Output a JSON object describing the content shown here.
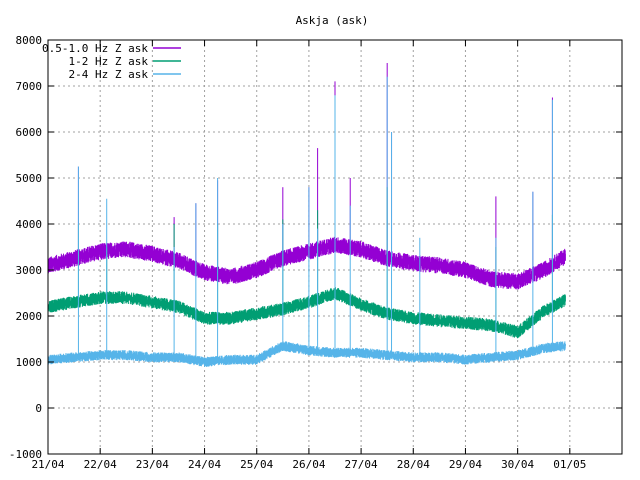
{
  "chart_data": {
    "type": "line",
    "title": "Askja (ask)",
    "xlabel": "",
    "ylabel": "",
    "ylim": [
      -1000,
      8000
    ],
    "yticks": [
      -1000,
      0,
      1000,
      2000,
      3000,
      4000,
      5000,
      6000,
      7000,
      8000
    ],
    "xlim_days": [
      0,
      11
    ],
    "xticks": [
      "21/04",
      "22/04",
      "23/04",
      "24/04",
      "25/04",
      "26/04",
      "27/04",
      "28/04",
      "29/04",
      "30/04",
      "01/05"
    ],
    "grid": true,
    "legend_position": "top-left",
    "series": [
      {
        "name": "0.5-1.0 Hz Z ask",
        "color": "#9400d3",
        "x": [
          "21/04 00:00",
          "21/04 12:00",
          "22/04 00:00",
          "22/04 12:00",
          "23/04 00:00",
          "23/04 12:00",
          "24/04 00:00",
          "24/04 12:00",
          "25/04 00:00",
          "25/04 12:00",
          "26/04 00:00",
          "26/04 12:00",
          "27/04 00:00",
          "27/04 12:00",
          "28/04 00:00",
          "28/04 12:00",
          "29/04 00:00",
          "29/04 12:00",
          "30/04 00:00",
          "30/04 12:00",
          "30/04 22:00"
        ],
        "values": [
          3100,
          3250,
          3400,
          3450,
          3350,
          3200,
          2950,
          2850,
          3000,
          3250,
          3400,
          3550,
          3450,
          3250,
          3150,
          3100,
          3000,
          2800,
          2750,
          3000,
          3300
        ],
        "spikes": [
          [
            "21/04 14:00",
            5250
          ],
          [
            "23/04 10:00",
            4150
          ],
          [
            "23/04 20:00",
            4450
          ],
          [
            "24/04 06:00",
            4950
          ],
          [
            "25/04 12:00",
            4800
          ],
          [
            "26/04 00:00",
            4800
          ],
          [
            "26/04 04:00",
            5650
          ],
          [
            "26/04 12:00",
            7100
          ],
          [
            "26/04 19:00",
            5000
          ],
          [
            "27/04 12:00",
            7500
          ],
          [
            "27/04 14:00",
            6000
          ],
          [
            "29/04 14:00",
            4600
          ],
          [
            "30/04 07:00",
            4700
          ],
          [
            "30/04 16:00",
            6750
          ]
        ]
      },
      {
        "name": "1-2 Hz Z ask",
        "color": "#009e73",
        "x": [
          "21/04 00:00",
          "21/04 12:00",
          "22/04 00:00",
          "22/04 12:00",
          "23/04 00:00",
          "23/04 12:00",
          "24/04 00:00",
          "24/04 12:00",
          "25/04 00:00",
          "25/04 12:00",
          "26/04 00:00",
          "26/04 12:00",
          "27/04 00:00",
          "27/04 12:00",
          "28/04 00:00",
          "28/04 12:00",
          "29/04 00:00",
          "29/04 12:00",
          "30/04 00:00",
          "30/04 12:00",
          "30/04 22:00"
        ],
        "values": [
          2200,
          2300,
          2400,
          2400,
          2300,
          2200,
          1950,
          1950,
          2050,
          2150,
          2300,
          2500,
          2250,
          2050,
          1950,
          1900,
          1850,
          1800,
          1650,
          2100,
          2350
        ],
        "spikes": [
          [
            "21/04 14:00",
            4000
          ],
          [
            "22/04 03:00",
            3500
          ],
          [
            "23/04 10:00",
            4000
          ],
          [
            "24/04 06:00",
            4000
          ],
          [
            "25/04 12:00",
            4100
          ],
          [
            "26/04 04:00",
            4300
          ],
          [
            "26/04 12:00",
            4000
          ],
          [
            "27/04 12:00",
            4800
          ],
          [
            "29/04 14:00",
            3500
          ],
          [
            "30/04 16:00",
            4200
          ]
        ]
      },
      {
        "name": "2-4 Hz Z ask",
        "color": "#56b4e9",
        "x": [
          "21/04 00:00",
          "21/04 12:00",
          "22/04 00:00",
          "22/04 12:00",
          "23/04 00:00",
          "23/04 12:00",
          "24/04 00:00",
          "24/04 12:00",
          "25/04 00:00",
          "25/04 12:00",
          "26/04 00:00",
          "26/04 12:00",
          "27/04 00:00",
          "27/04 12:00",
          "28/04 00:00",
          "28/04 12:00",
          "29/04 00:00",
          "29/04 12:00",
          "30/04 00:00",
          "30/04 12:00",
          "30/04 22:00"
        ],
        "values": [
          1050,
          1100,
          1150,
          1150,
          1100,
          1100,
          1000,
          1050,
          1050,
          1350,
          1250,
          1200,
          1200,
          1150,
          1100,
          1100,
          1050,
          1100,
          1150,
          1300,
          1350
        ],
        "spikes": [
          [
            "21/04 14:00",
            5250
          ],
          [
            "22/04 03:00",
            4550
          ],
          [
            "23/04 10:00",
            3500
          ],
          [
            "23/04 20:00",
            4450
          ],
          [
            "24/04 06:00",
            5000
          ],
          [
            "25/04 12:00",
            4000
          ],
          [
            "26/04 00:00",
            4800
          ],
          [
            "26/04 04:00",
            3900
          ],
          [
            "26/04 12:00",
            6800
          ],
          [
            "26/04 19:00",
            4400
          ],
          [
            "27/04 12:00",
            7200
          ],
          [
            "27/04 14:00",
            6000
          ],
          [
            "28/04 03:00",
            3700
          ],
          [
            "29/04 14:00",
            3700
          ],
          [
            "30/04 07:00",
            4700
          ],
          [
            "30/04 16:00",
            6700
          ]
        ]
      }
    ]
  }
}
